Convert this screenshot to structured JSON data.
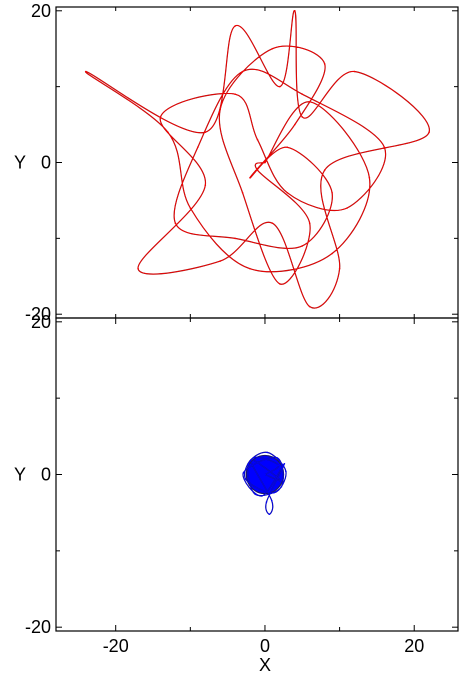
{
  "chart_data": [
    {
      "type": "line",
      "panel": "top",
      "xlim": [
        -28,
        26
      ],
      "ylim": [
        -20.5,
        20.5
      ],
      "x_ticks": [],
      "y_ticks": [
        {
          "value": 20,
          "label": "20"
        },
        {
          "value": 0,
          "label": "0"
        },
        {
          "value": -20,
          "label": "-20"
        }
      ],
      "minor_y_ticks": [
        10,
        -10
      ],
      "minor_x_ticks": [
        -20,
        -10,
        0,
        10,
        20
      ],
      "ylabel": "Y",
      "series": [
        {
          "color": "#ff0000",
          "outline_color": "#8b1a1a",
          "points": [
            [
              0,
              0
            ],
            [
              6,
              8
            ],
            [
              14,
              -2
            ],
            [
              9,
              -12
            ],
            [
              -2,
              -14
            ],
            [
              -10,
              -6
            ],
            [
              -13,
              4
            ],
            [
              -24,
              12
            ],
            [
              -8,
              4
            ],
            [
              -4,
              18
            ],
            [
              2,
              10
            ],
            [
              4,
              20
            ],
            [
              5,
              6
            ],
            [
              12,
              12
            ],
            [
              22,
              4
            ],
            [
              8,
              -1
            ],
            [
              10,
              -14
            ],
            [
              6,
              -19
            ],
            [
              1,
              -8
            ],
            [
              -6,
              -13
            ],
            [
              -17,
              -14
            ],
            [
              -8,
              -3
            ],
            [
              -14,
              6
            ],
            [
              -4,
              9
            ],
            [
              -1,
              3
            ],
            [
              3,
              -4
            ],
            [
              11,
              -6
            ],
            [
              16,
              2
            ],
            [
              5,
              9
            ],
            [
              -3,
              12
            ],
            [
              -9,
              2
            ],
            [
              -12,
              -8
            ],
            [
              -4,
              -10
            ],
            [
              5,
              -11
            ],
            [
              9,
              -4
            ],
            [
              3,
              2
            ],
            [
              -2,
              -2
            ],
            [
              4,
              5
            ],
            [
              8,
              13
            ],
            [
              1,
              15
            ],
            [
              -6,
              7
            ],
            [
              -3,
              -4
            ],
            [
              2,
              -16
            ],
            [
              6,
              -8
            ],
            [
              -1,
              -1
            ],
            [
              0,
              0
            ]
          ]
        }
      ]
    },
    {
      "type": "line",
      "panel": "bottom",
      "xlim": [
        -28,
        26
      ],
      "ylim": [
        -20.5,
        20.5
      ],
      "x_ticks": [
        {
          "value": -20,
          "label": "-20"
        },
        {
          "value": 0,
          "label": "0"
        },
        {
          "value": 20,
          "label": "20"
        }
      ],
      "y_ticks": [
        {
          "value": 20,
          "label": "20"
        },
        {
          "value": 0,
          "label": "0"
        },
        {
          "value": -20,
          "label": "-20"
        }
      ],
      "minor_y_ticks": [
        10,
        -10
      ],
      "minor_x_ticks": [
        -10,
        10
      ],
      "xlabel": "X",
      "ylabel": "Y",
      "series": [
        {
          "color": "#0000ff",
          "outline_color": "#1a1a6b",
          "center": [
            0,
            0
          ],
          "radius": 2.5,
          "points": [
            [
              0,
              0
            ],
            [
              1.8,
              1.2
            ],
            [
              -1.5,
              2.2
            ],
            [
              -2.6,
              -0.6
            ],
            [
              1.2,
              -2.4
            ],
            [
              2.8,
              0.4
            ],
            [
              0.3,
              2.9
            ],
            [
              -2.2,
              1.3
            ],
            [
              -1.3,
              -2.6
            ],
            [
              2.2,
              -1.6
            ],
            [
              1.6,
              2.2
            ],
            [
              -2.9,
              0.2
            ],
            [
              -0.4,
              -2.8
            ],
            [
              2.6,
              1.4
            ],
            [
              0.2,
              -3.6
            ],
            [
              0.6,
              -5.2
            ],
            [
              0.9,
              -3.4
            ],
            [
              -1.9,
              1.9
            ],
            [
              2.1,
              -0.8
            ],
            [
              0,
              0
            ]
          ]
        }
      ]
    }
  ]
}
